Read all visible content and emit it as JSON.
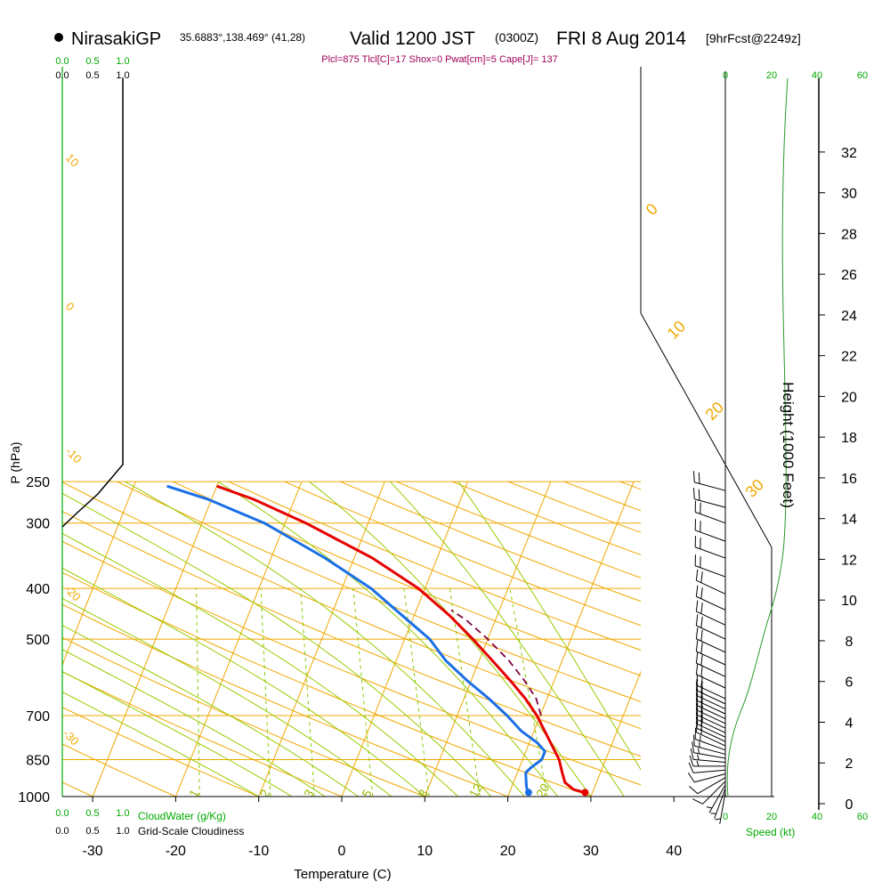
{
  "header": {
    "station": "NirasakiGP",
    "coords": "35.6883°,138.469° (41,28)",
    "valid": "Valid 1200 JST",
    "utc": "(0300Z)",
    "date": "FRI 8 Aug 2014",
    "forecast": "[9hrFcst@2249z]",
    "stats": "Plcl=875 Tlcl[C]=17 Shox=0 Pwat[cm]=5 Cape[J]= 137"
  },
  "colors": {
    "temperature": "#e60000",
    "dewpoint": "#1a6fe6",
    "parcel": "#800040",
    "isotherm": "#f0a800",
    "dry_adiabat": "#f0a800",
    "moist_adiabat": "#99cc00",
    "mixing_ratio": "#88cc00",
    "green_text": "#00aa00",
    "stats_text": "#a0005a"
  },
  "chart_data": {
    "type": "line",
    "title": "Skew-T log-P sounding, NirasakiGP, Valid 1200 JST FRI 8 Aug 2014",
    "xlabel": "Temperature (C)",
    "ylabel": "P (hPa)",
    "right_axis_label": "Height (1000 Feet)",
    "x_ticks": [
      "-30",
      "-20",
      "-10",
      "0",
      "10",
      "20",
      "30",
      "40"
    ],
    "x_tick_values": [
      -30,
      -20,
      -10,
      0,
      10,
      20,
      30,
      40
    ],
    "pressure_ticks": [
      "250",
      "300",
      "400",
      "500",
      "700",
      "850",
      "1000"
    ],
    "pressure_tick_values": [
      250,
      300,
      400,
      500,
      700,
      850,
      1000
    ],
    "height_ticks": [
      "0",
      "2",
      "4",
      "6",
      "8",
      "10",
      "12",
      "14",
      "16",
      "18",
      "20",
      "22",
      "24",
      "26",
      "28",
      "30",
      "32"
    ],
    "height_tick_values": [
      0,
      2,
      4,
      6,
      8,
      10,
      12,
      14,
      16,
      18,
      20,
      22,
      24,
      26,
      28,
      30,
      32
    ],
    "isotherm_labels": [
      "0",
      "10",
      "20",
      "30"
    ],
    "dry_adiabat_labels": [
      "10",
      "0",
      "-10",
      "-20",
      "-30"
    ],
    "mixing_ratio_labels": [
      "1",
      "2",
      "3",
      "5",
      "8",
      "12",
      "20"
    ],
    "cloud_water_scale": [
      "0.0",
      "0.5",
      "1.0"
    ],
    "cloud_water_label": "CloudWater (g/Kg)",
    "cloudiness_scale": [
      "0.0",
      "0.5",
      "1.0"
    ],
    "cloudiness_label": "Grid-Scale Cloudiness",
    "speed_scale": [
      "0",
      "20",
      "40",
      "60"
    ],
    "speed_label": "Speed (kt)",
    "series": [
      {
        "name": "Temperature",
        "points": [
          {
            "p": 982,
            "t": 29.1
          },
          {
            "p": 970,
            "t": 27.6
          },
          {
            "p": 940,
            "t": 26.2
          },
          {
            "p": 900,
            "t": 25.4
          },
          {
            "p": 850,
            "t": 24.4
          },
          {
            "p": 800,
            "t": 22.9
          },
          {
            "p": 750,
            "t": 21.3
          },
          {
            "p": 700,
            "t": 19.6
          },
          {
            "p": 650,
            "t": 17.4
          },
          {
            "p": 600,
            "t": 14.7
          },
          {
            "p": 550,
            "t": 11.6
          },
          {
            "p": 500,
            "t": 8.2
          },
          {
            "p": 450,
            "t": 4.2
          },
          {
            "p": 400,
            "t": -0.8
          },
          {
            "p": 350,
            "t": -7.8
          },
          {
            "p": 300,
            "t": -17.5
          },
          {
            "p": 270,
            "t": -25.0
          },
          {
            "p": 255,
            "t": -30.0
          }
        ]
      },
      {
        "name": "Dewpoint",
        "points": [
          {
            "p": 982,
            "t": 22.3
          },
          {
            "p": 960,
            "t": 21.8
          },
          {
            "p": 930,
            "t": 21.4
          },
          {
            "p": 900,
            "t": 21.0
          },
          {
            "p": 880,
            "t": 21.4
          },
          {
            "p": 850,
            "t": 22.3
          },
          {
            "p": 820,
            "t": 22.3
          },
          {
            "p": 790,
            "t": 21.0
          },
          {
            "p": 750,
            "t": 18.5
          },
          {
            "p": 700,
            "t": 16.0
          },
          {
            "p": 650,
            "t": 13.0
          },
          {
            "p": 600,
            "t": 9.5
          },
          {
            "p": 550,
            "t": 6.0
          },
          {
            "p": 500,
            "t": 3.0
          },
          {
            "p": 450,
            "t": -1.5
          },
          {
            "p": 400,
            "t": -6.5
          },
          {
            "p": 350,
            "t": -13.5
          },
          {
            "p": 300,
            "t": -22.5
          },
          {
            "p": 270,
            "t": -30.5
          },
          {
            "p": 255,
            "t": -36.0
          }
        ]
      },
      {
        "name": "Parcel",
        "points": [
          {
            "p": 700,
            "t": 20.1
          },
          {
            "p": 650,
            "t": 18.7
          },
          {
            "p": 600,
            "t": 16.4
          },
          {
            "p": 550,
            "t": 13.6
          },
          {
            "p": 500,
            "t": 10.0
          },
          {
            "p": 460,
            "t": 6.5
          },
          {
            "p": 440,
            "t": 4.2
          }
        ]
      }
    ],
    "wind_levels_hpa": [
      982,
      965,
      950,
      935,
      920,
      905,
      890,
      875,
      860,
      845,
      830,
      815,
      800,
      785,
      770,
      755,
      740,
      725,
      710,
      695,
      680,
      665,
      650,
      620,
      590,
      560,
      530,
      500,
      470,
      440,
      410,
      380,
      350,
      325,
      300,
      280,
      260
    ],
    "wind_speed_kt": [
      5,
      5,
      5,
      10,
      10,
      10,
      10,
      15,
      15,
      15,
      15,
      15,
      15,
      20,
      20,
      20,
      20,
      20,
      20,
      20,
      20,
      20,
      20,
      20,
      20,
      20,
      20,
      20,
      20,
      20,
      20,
      20,
      20,
      20,
      20,
      20,
      20
    ],
    "wind_dir_deg": [
      190,
      200,
      210,
      225,
      240,
      255,
      265,
      270,
      275,
      280,
      285,
      290,
      295,
      295,
      295,
      295,
      295,
      295,
      295,
      295,
      295,
      295,
      295,
      295,
      295,
      295,
      295,
      295,
      295,
      295,
      295,
      290,
      290,
      290,
      290,
      285,
      285
    ]
  }
}
